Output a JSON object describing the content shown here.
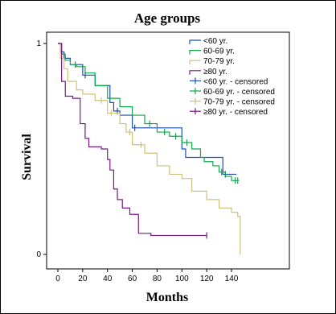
{
  "chart_data": {
    "type": "line",
    "title": "Age groups",
    "xlabel": "Months",
    "ylabel": "Survival",
    "xlim": [
      -5,
      150
    ],
    "ylim": [
      0,
      1
    ],
    "x_ticks": [
      0,
      20,
      40,
      60,
      80,
      100,
      120,
      140
    ],
    "y_ticks": [
      0,
      1
    ],
    "grid": false,
    "legend_position": "top-right",
    "series": [
      {
        "name": "<60 yr.",
        "color": "#1f4fb5",
        "points": [
          [
            0,
            1
          ],
          [
            2,
            0.96
          ],
          [
            5,
            0.93
          ],
          [
            10,
            0.9
          ],
          [
            20,
            0.85
          ],
          [
            30,
            0.8
          ],
          [
            42,
            0.72
          ],
          [
            45,
            0.68
          ],
          [
            50,
            0.66
          ],
          [
            60,
            0.6
          ],
          [
            80,
            0.6
          ],
          [
            100,
            0.5
          ],
          [
            103,
            0.46
          ],
          [
            128,
            0.46
          ],
          [
            133,
            0.38
          ],
          [
            144,
            0.38
          ]
        ],
        "censored_x": [
          22,
          48,
          62,
          135
        ]
      },
      {
        "name": "60-69 yr.",
        "color": "#10a84b",
        "points": [
          [
            0,
            1
          ],
          [
            3,
            0.95
          ],
          [
            6,
            0.92
          ],
          [
            10,
            0.9
          ],
          [
            15,
            0.89
          ],
          [
            22,
            0.86
          ],
          [
            30,
            0.8
          ],
          [
            40,
            0.74
          ],
          [
            50,
            0.7
          ],
          [
            60,
            0.66
          ],
          [
            70,
            0.62
          ],
          [
            80,
            0.58
          ],
          [
            90,
            0.56
          ],
          [
            100,
            0.53
          ],
          [
            108,
            0.5
          ],
          [
            115,
            0.46
          ],
          [
            118,
            0.44
          ],
          [
            125,
            0.42
          ],
          [
            130,
            0.39
          ],
          [
            135,
            0.37
          ],
          [
            140,
            0.35
          ],
          [
            146,
            0.35
          ]
        ],
        "censored_x": [
          14,
          74,
          86,
          95,
          104,
          132,
          143,
          145
        ]
      },
      {
        "name": "70-79 yr.",
        "color": "#cfc27a",
        "points": [
          [
            0,
            1
          ],
          [
            2,
            0.93
          ],
          [
            5,
            0.88
          ],
          [
            8,
            0.82
          ],
          [
            15,
            0.78
          ],
          [
            20,
            0.76
          ],
          [
            30,
            0.73
          ],
          [
            40,
            0.67
          ],
          [
            50,
            0.62
          ],
          [
            55,
            0.58
          ],
          [
            60,
            0.52
          ],
          [
            70,
            0.48
          ],
          [
            80,
            0.42
          ],
          [
            90,
            0.38
          ],
          [
            100,
            0.36
          ],
          [
            108,
            0.3
          ],
          [
            120,
            0.26
          ],
          [
            130,
            0.22
          ],
          [
            140,
            0.2
          ],
          [
            145,
            0.18
          ],
          [
            147,
            0
          ]
        ],
        "censored_x": [
          35,
          43,
          58,
          67
        ]
      },
      {
        "name": "≥80 yr.",
        "color": "#7a1a86",
        "points": [
          [
            0,
            1
          ],
          [
            3,
            0.82
          ],
          [
            6,
            0.75
          ],
          [
            12,
            0.74
          ],
          [
            18,
            0.62
          ],
          [
            22,
            0.55
          ],
          [
            25,
            0.51
          ],
          [
            30,
            0.51
          ],
          [
            35,
            0.5
          ],
          [
            40,
            0.45
          ],
          [
            42,
            0.4
          ],
          [
            45,
            0.31
          ],
          [
            48,
            0.26
          ],
          [
            52,
            0.22
          ],
          [
            58,
            0.19
          ],
          [
            65,
            0.1
          ],
          [
            75,
            0.09
          ],
          [
            120,
            0.09
          ]
        ],
        "censored_x": [
          120
        ]
      }
    ],
    "legend_entries": [
      {
        "label": "<60 yr.",
        "color": "#1f4fb5",
        "kind": "line"
      },
      {
        "label": "60-69 yr.",
        "color": "#10a84b",
        "kind": "line"
      },
      {
        "label": "70-79 yr.",
        "color": "#cfc27a",
        "kind": "line"
      },
      {
        "label": "≥80 yr.",
        "color": "#7a1a86",
        "kind": "line"
      },
      {
        "label": "<60 yr. - censored",
        "color": "#1f4fb5",
        "kind": "plus"
      },
      {
        "label": "60-69 yr. - censored",
        "color": "#10a84b",
        "kind": "plus"
      },
      {
        "label": "70-79 yr. - censored",
        "color": "#cfc27a",
        "kind": "plus"
      },
      {
        "label": "≥80 yr. - censored",
        "color": "#7a1a86",
        "kind": "plus"
      }
    ]
  }
}
